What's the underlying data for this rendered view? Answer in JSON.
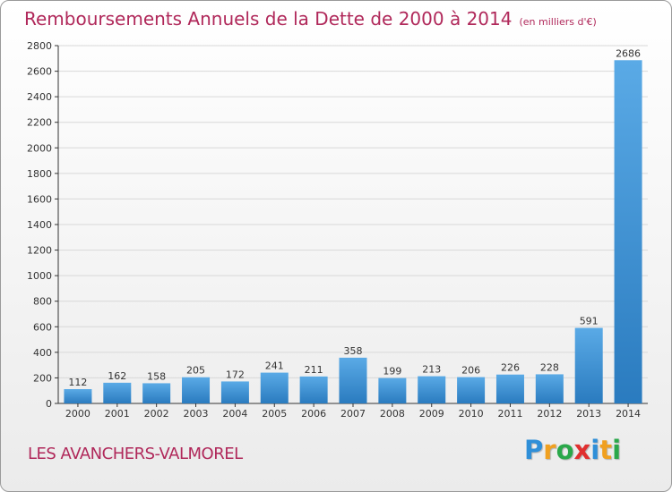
{
  "title": "Remboursements Annuels de la Dette de 2000 à 2014",
  "title_unit": "(en milliers d'€)",
  "commune": "LES AVANCHERS-VALMOREL",
  "logo": {
    "letters": [
      "P",
      "r",
      "o",
      "x",
      "i",
      "t",
      "i"
    ],
    "colors": [
      "#2f8fd8",
      "#f0a020",
      "#2aa84a",
      "#e03030",
      "#2f8fd8",
      "#f0a020",
      "#2aa84a"
    ]
  },
  "colors": {
    "title": "#b0285a",
    "bar_light": "#5aaae6",
    "bar_dark": "#2a7bbf",
    "grid": "#d8d8d8",
    "axis": "#333333"
  },
  "chart_data": {
    "type": "bar",
    "categories": [
      "2000",
      "2001",
      "2002",
      "2003",
      "2004",
      "2005",
      "2006",
      "2007",
      "2008",
      "2009",
      "2010",
      "2011",
      "2012",
      "2013",
      "2014"
    ],
    "values": [
      112,
      162,
      158,
      205,
      172,
      241,
      211,
      358,
      199,
      213,
      206,
      226,
      228,
      591,
      2686
    ],
    "yticks": [
      0,
      200,
      400,
      600,
      800,
      1000,
      1200,
      1400,
      1600,
      1800,
      2000,
      2200,
      2400,
      2600,
      2800
    ],
    "ylim": [
      0,
      2800
    ],
    "grid": true
  }
}
